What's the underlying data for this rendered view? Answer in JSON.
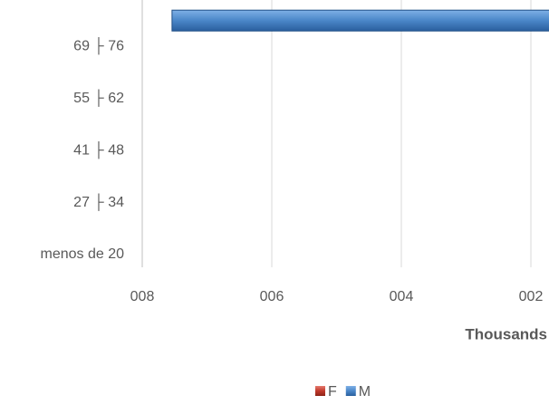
{
  "chart_data": {
    "type": "bar",
    "orientation": "horizontal",
    "x_label": "Thousands",
    "categories": [
      "menos de 20",
      null,
      "27 ├ 34",
      null,
      "41 ├ 48",
      null,
      "55 ├ 62",
      null,
      "69 ├ 76",
      null
    ],
    "series": [
      {
        "name": "F",
        "color": "#c0392b",
        "values": [
          null,
          null,
          null,
          null,
          null,
          null,
          null,
          null,
          null,
          null
        ]
      },
      {
        "name": "M",
        "color": "#4a86c8",
        "values": [
          null,
          null,
          null,
          null,
          null,
          null,
          null,
          null,
          null,
          754
        ]
      }
    ],
    "xlim": [
      800,
      0
    ],
    "xticks": [
      {
        "value": 800,
        "label": "008"
      },
      {
        "value": 600,
        "label": "006"
      },
      {
        "value": 400,
        "label": "004"
      },
      {
        "value": 200,
        "label": "002"
      }
    ],
    "grid": true
  }
}
